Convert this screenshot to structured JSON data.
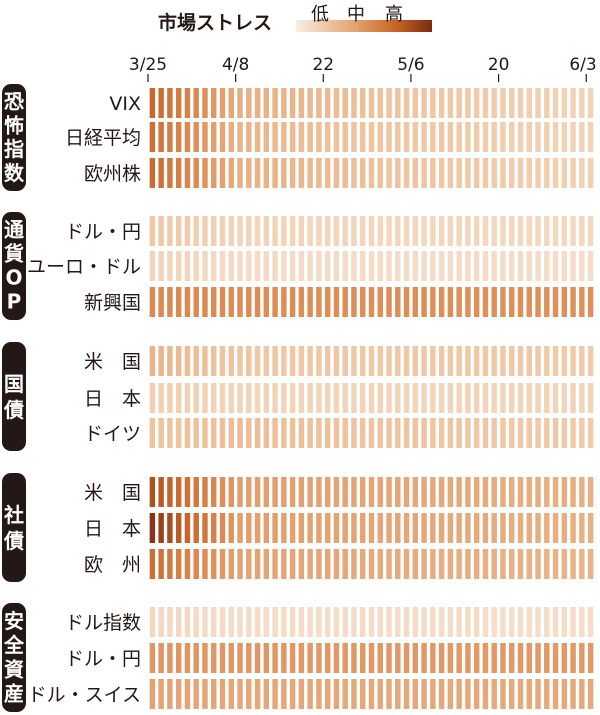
{
  "legend": {
    "title": "市場ストレス",
    "low": "低",
    "mid": "中",
    "high": "高"
  },
  "chart_data": {
    "type": "heatmap",
    "x_tick_labels": [
      "3/25",
      "4/8",
      "22",
      "5/6",
      "20",
      "6/3"
    ],
    "x_tick_columns": [
      0,
      10,
      20,
      30,
      40,
      50
    ],
    "n_columns": 51,
    "groups": [
      {
        "name": "恐怖指数",
        "rows": [
          "VIX",
          "日経平均",
          "欧州株"
        ]
      },
      {
        "name": "通貨OP",
        "rows": [
          "ドル・円",
          "ユーロ・ドル",
          "新興国"
        ]
      },
      {
        "name": "国債",
        "rows": [
          "米　国",
          "日　本",
          "ドイツ"
        ]
      },
      {
        "name": "社債",
        "rows": [
          "米　国",
          "日　本",
          "欧　州"
        ]
      },
      {
        "name": "安全資産",
        "rows": [
          "ドル指数",
          "ドル・円",
          "ドル・スイス"
        ]
      }
    ],
    "scale": {
      "min": 0,
      "max": 1,
      "low": "低",
      "mid": "中",
      "high": "高"
    },
    "rows": [
      {
        "group": "恐怖指数",
        "label": "VIX",
        "start": 0.78,
        "mid": 0.45,
        "end": 0.22
      },
      {
        "group": "恐怖指数",
        "label": "日経平均",
        "start": 0.74,
        "mid": 0.42,
        "end": 0.22
      },
      {
        "group": "恐怖指数",
        "label": "欧州株",
        "start": 0.76,
        "mid": 0.44,
        "end": 0.24
      },
      {
        "group": "通貨OP",
        "label": "ドル・円",
        "start": 0.32,
        "mid": 0.22,
        "end": 0.18
      },
      {
        "group": "通貨OP",
        "label": "ユーロ・ドル",
        "start": 0.22,
        "mid": 0.16,
        "end": 0.14
      },
      {
        "group": "通貨OP",
        "label": "新興国",
        "start": 0.62,
        "mid": 0.6,
        "end": 0.58
      },
      {
        "group": "国債",
        "label": "米　国",
        "start": 0.42,
        "mid": 0.33,
        "end": 0.3
      },
      {
        "group": "国債",
        "label": "日　本",
        "start": 0.26,
        "mid": 0.22,
        "end": 0.22
      },
      {
        "group": "国債",
        "label": "ドイツ",
        "start": 0.34,
        "mid": 0.38,
        "end": 0.3
      },
      {
        "group": "社債",
        "label": "米　国",
        "start": 0.86,
        "mid": 0.52,
        "end": 0.44
      },
      {
        "group": "社債",
        "label": "日　本",
        "start": 0.96,
        "mid": 0.52,
        "end": 0.44
      },
      {
        "group": "社債",
        "label": "欧　州",
        "start": 0.74,
        "mid": 0.5,
        "end": 0.42
      },
      {
        "group": "安全資産",
        "label": "ドル指数",
        "start": 0.18,
        "mid": 0.15,
        "end": 0.14
      },
      {
        "group": "安全資産",
        "label": "ドル・円",
        "start": 0.56,
        "mid": 0.55,
        "end": 0.54
      },
      {
        "group": "安全資産",
        "label": "ドル・スイス",
        "start": 0.5,
        "mid": 0.48,
        "end": 0.47
      }
    ]
  }
}
